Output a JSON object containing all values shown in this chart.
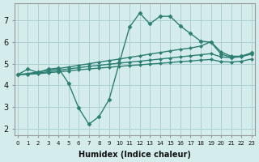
{
  "xlabel": "Humidex (Indice chaleur)",
  "background_color": "#d4ecec",
  "grid_color": "#aed0d0",
  "line_color": "#2d7f72",
  "x_ticks": [
    0,
    1,
    2,
    3,
    4,
    5,
    6,
    7,
    8,
    9,
    10,
    11,
    12,
    13,
    14,
    15,
    16,
    17,
    18,
    19,
    20,
    21,
    22,
    23
  ],
  "ylim": [
    1.7,
    7.8
  ],
  "xlim": [
    -0.3,
    23.3
  ],
  "series": [
    {
      "x": [
        0,
        1,
        2,
        3,
        4,
        5,
        6,
        7,
        8,
        9,
        10,
        11,
        12,
        13,
        14,
        15,
        16,
        17,
        18,
        19,
        20,
        21,
        22,
        23
      ],
      "y": [
        4.5,
        4.75,
        4.6,
        4.75,
        4.8,
        4.1,
        2.95,
        2.2,
        2.55,
        3.35,
        5.05,
        6.7,
        7.35,
        6.85,
        7.2,
        7.2,
        6.75,
        6.4,
        6.05,
        6.0,
        5.45,
        5.3,
        5.35,
        5.5
      ],
      "marker": "D",
      "markersize": 2.5,
      "linewidth": 1.0
    },
    {
      "x": [
        0,
        1,
        2,
        3,
        4,
        5,
        6,
        7,
        8,
        9,
        10,
        11,
        12,
        13,
        14,
        15,
        16,
        17,
        18,
        19,
        20,
        21,
        22,
        23
      ],
      "y": [
        4.5,
        4.55,
        4.62,
        4.7,
        4.78,
        4.85,
        4.93,
        5.0,
        5.08,
        5.15,
        5.22,
        5.3,
        5.37,
        5.45,
        5.52,
        5.6,
        5.67,
        5.73,
        5.82,
        6.02,
        5.55,
        5.35,
        5.35,
        5.5
      ],
      "marker": "D",
      "markersize": 2.0,
      "linewidth": 1.0
    },
    {
      "x": [
        0,
        1,
        2,
        3,
        4,
        5,
        6,
        7,
        8,
        9,
        10,
        11,
        12,
        13,
        14,
        15,
        16,
        17,
        18,
        19,
        20,
        21,
        22,
        23
      ],
      "y": [
        4.5,
        4.52,
        4.57,
        4.63,
        4.7,
        4.76,
        4.82,
        4.88,
        4.93,
        4.98,
        5.03,
        5.08,
        5.12,
        5.17,
        5.22,
        5.27,
        5.32,
        5.37,
        5.42,
        5.47,
        5.32,
        5.28,
        5.33,
        5.45
      ],
      "marker": "D",
      "markersize": 2.0,
      "linewidth": 1.0
    },
    {
      "x": [
        0,
        1,
        2,
        3,
        4,
        5,
        6,
        7,
        8,
        9,
        10,
        11,
        12,
        13,
        14,
        15,
        16,
        17,
        18,
        19,
        20,
        21,
        22,
        23
      ],
      "y": [
        4.5,
        4.51,
        4.54,
        4.58,
        4.63,
        4.67,
        4.72,
        4.76,
        4.8,
        4.84,
        4.88,
        4.92,
        4.95,
        4.99,
        5.02,
        5.06,
        5.1,
        5.13,
        5.17,
        5.2,
        5.1,
        5.08,
        5.12,
        5.22
      ],
      "marker": "D",
      "markersize": 2.0,
      "linewidth": 1.0
    }
  ]
}
